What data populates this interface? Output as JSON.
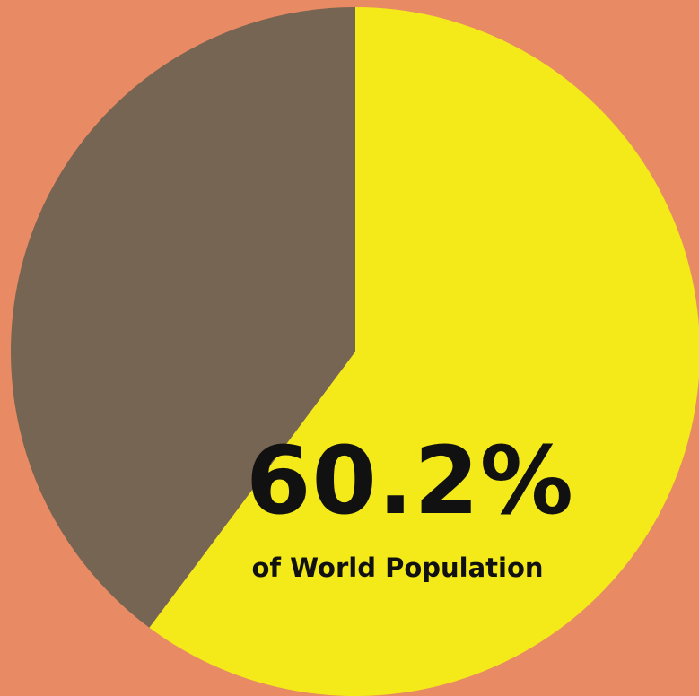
{
  "chart_data": {
    "type": "pie",
    "slices": [
      {
        "value": 60.2,
        "color": "#f4ea1a"
      },
      {
        "value": 39.8,
        "color": "#756552"
      }
    ],
    "start_angle_deg": 0,
    "direction": "clockwise",
    "annotation": {
      "value": "60.2%",
      "caption": "of World Population"
    },
    "legend": "none"
  },
  "colors": {
    "background": "#e88a63",
    "highlight": "#f4ea1a",
    "rest": "#756552",
    "text": "#111111"
  }
}
